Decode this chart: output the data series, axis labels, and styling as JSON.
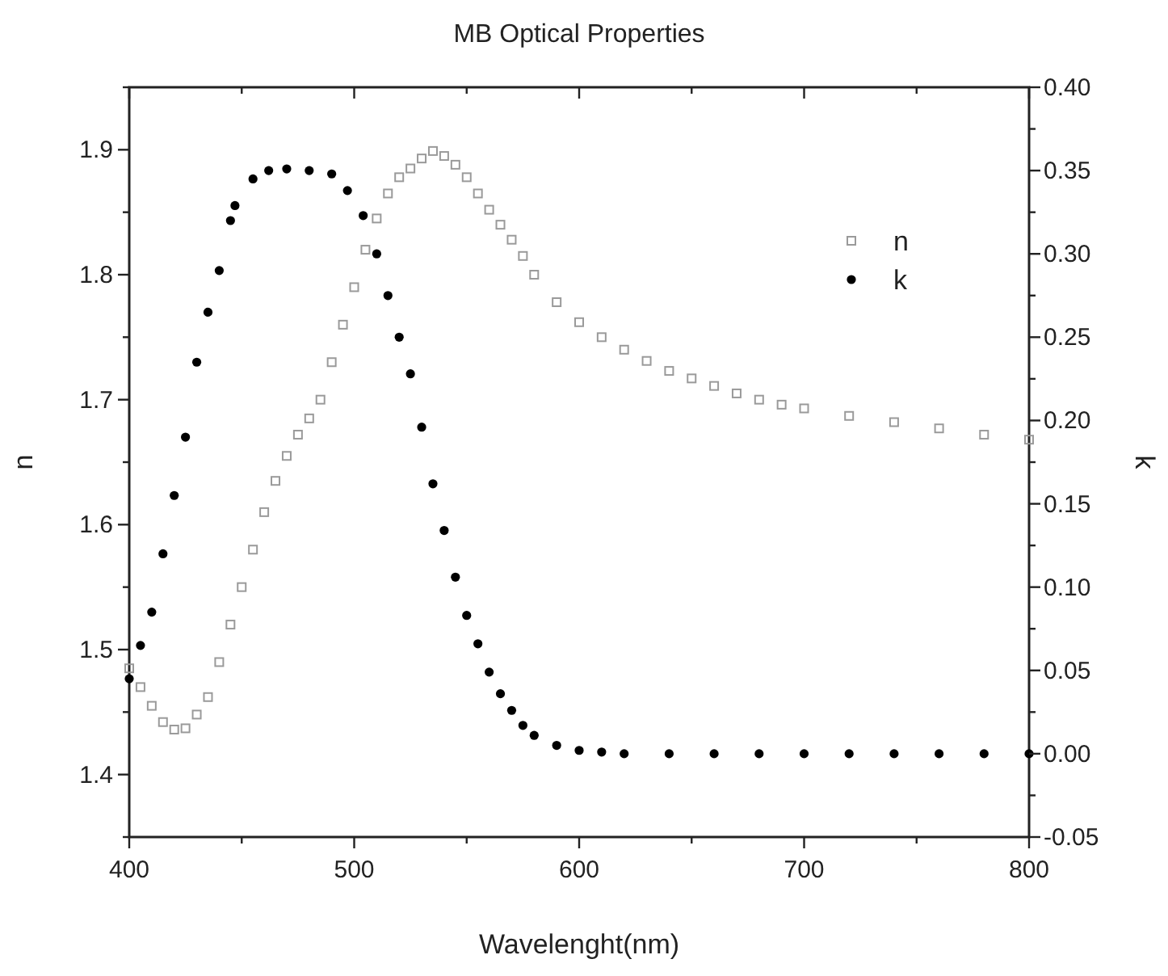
{
  "chart_data": {
    "type": "scatter",
    "title": "MB Optical Properties",
    "xlabel": "Wavelenght(nm)",
    "ylabel": "n",
    "y2label": "k",
    "xlim": [
      400,
      800
    ],
    "xticks": [
      400,
      {
        "value": 450,
        "label": null
      },
      500,
      {
        "value": 550,
        "label": null
      },
      600,
      {
        "value": 650,
        "label": null
      },
      700,
      {
        "value": 750,
        "label": null
      },
      800
    ],
    "ylim": [
      1.35,
      1.95
    ],
    "yticks": [
      {
        "value": 1.35,
        "label": null
      },
      1.4,
      {
        "value": 1.45,
        "label": null
      },
      1.5,
      {
        "value": 1.55,
        "label": null
      },
      1.6,
      {
        "value": 1.65,
        "label": null
      },
      1.7,
      {
        "value": 1.75,
        "label": null
      },
      1.8,
      {
        "value": 1.85,
        "label": null
      },
      1.9,
      {
        "value": 1.95,
        "label": null
      }
    ],
    "y2lim": [
      -0.05,
      0.4
    ],
    "y2ticks": [
      -0.05,
      {
        "value": -0.025,
        "label": null
      },
      "0.00",
      {
        "value": 0.025,
        "label": null
      },
      0.05,
      {
        "value": 0.075,
        "label": null
      },
      "0.10",
      {
        "value": 0.125,
        "label": null
      },
      0.15,
      {
        "value": 0.175,
        "label": null
      },
      "0.20",
      {
        "value": 0.225,
        "label": null
      },
      0.25,
      {
        "value": 0.275,
        "label": null
      },
      "0.30",
      {
        "value": 0.325,
        "label": null
      },
      0.35,
      {
        "value": 0.375,
        "label": null
      },
      "0.40"
    ],
    "grid": false,
    "legend": "top right",
    "series": [
      {
        "name": "n",
        "color": "#9a9a9a",
        "marker": "square",
        "x": [
          400,
          405,
          410,
          415,
          420,
          425,
          430,
          435,
          440,
          445,
          450,
          455,
          460,
          465,
          470,
          475,
          480,
          485,
          490,
          495,
          500,
          505,
          510,
          515,
          520,
          525,
          530,
          535,
          540,
          545,
          550,
          555,
          560,
          565,
          570,
          575,
          580,
          590,
          600,
          610,
          620,
          630,
          640,
          650,
          660,
          670,
          680,
          690,
          700,
          720,
          740,
          760,
          780,
          800
        ],
        "values": [
          1.485,
          1.47,
          1.455,
          1.442,
          1.436,
          1.437,
          1.448,
          1.462,
          1.49,
          1.52,
          1.55,
          1.58,
          1.61,
          1.635,
          1.655,
          1.672,
          1.685,
          1.7,
          1.73,
          1.76,
          1.79,
          1.82,
          1.845,
          1.865,
          1.878,
          1.885,
          1.893,
          1.899,
          1.895,
          1.888,
          1.878,
          1.865,
          1.852,
          1.84,
          1.828,
          1.815,
          1.8,
          1.778,
          1.762,
          1.75,
          1.74,
          1.731,
          1.723,
          1.717,
          1.711,
          1.705,
          1.7,
          1.696,
          1.693,
          1.687,
          1.682,
          1.677,
          1.672,
          1.668
        ]
      },
      {
        "name": "k",
        "color": "#000000",
        "marker": "circle",
        "axis": "y2",
        "x": [
          400,
          405,
          410,
          415,
          420,
          425,
          430,
          435,
          440,
          445,
          447,
          455,
          462,
          470,
          480,
          490,
          497,
          504,
          510,
          515,
          520,
          525,
          530,
          535,
          540,
          545,
          550,
          555,
          560,
          565,
          570,
          575,
          580,
          590,
          600,
          610,
          620,
          640,
          660,
          680,
          700,
          720,
          740,
          760,
          780,
          800
        ],
        "values": [
          0.045,
          0.065,
          0.085,
          0.12,
          0.155,
          0.19,
          0.235,
          0.265,
          0.29,
          0.32,
          0.329,
          0.345,
          0.35,
          0.351,
          0.35,
          0.348,
          0.338,
          0.323,
          0.3,
          0.275,
          0.25,
          0.228,
          0.196,
          0.162,
          0.134,
          0.106,
          0.083,
          0.066,
          0.049,
          0.036,
          0.026,
          0.017,
          0.011,
          0.005,
          0.002,
          0.001,
          0,
          0,
          0,
          0,
          0,
          0,
          0,
          0,
          0,
          0
        ]
      }
    ]
  }
}
